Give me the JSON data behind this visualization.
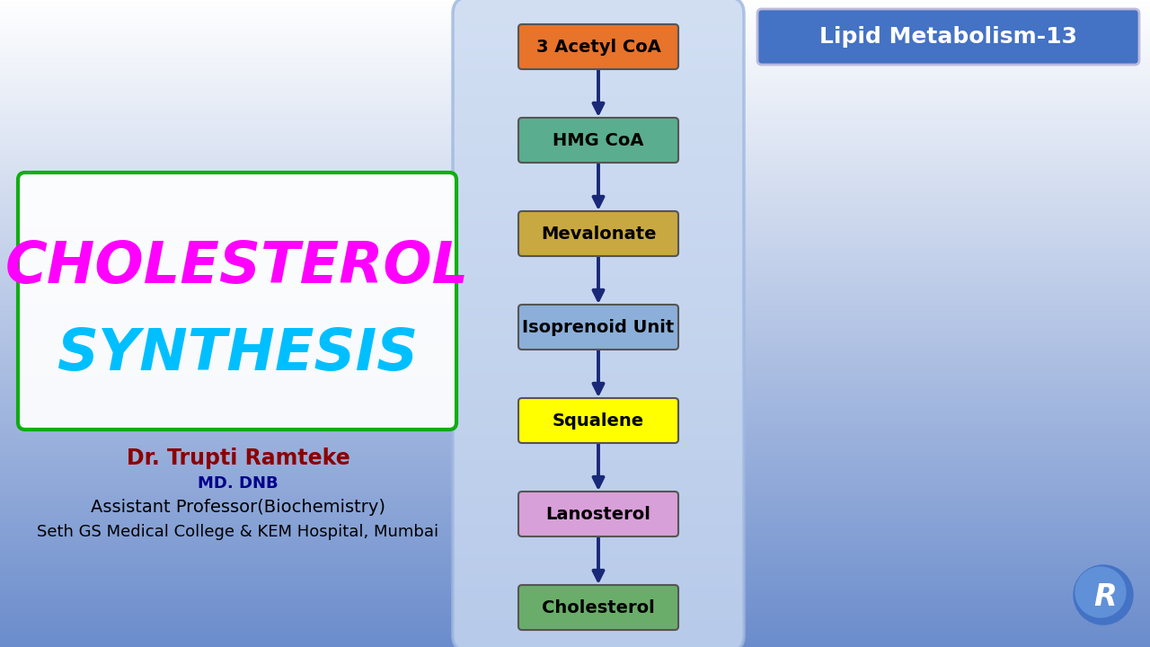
{
  "title_line1": "CHOLESTEROL",
  "title_line2": "SYNTHESIS",
  "lipid_label": "Lipid Metabolism-13",
  "steps": [
    {
      "label": "3 Acetyl CoA",
      "color": "#E8732A",
      "text_color": "#000000"
    },
    {
      "label": "HMG CoA",
      "color": "#5BAD8F",
      "text_color": "#000000"
    },
    {
      "label": "Mevalonate",
      "color": "#C8A840",
      "text_color": "#000000"
    },
    {
      "label": "Isoprenoid Unit",
      "color": "#8BAFD8",
      "text_color": "#000000"
    },
    {
      "label": "Squalene",
      "color": "#FFFF00",
      "text_color": "#000000"
    },
    {
      "label": "Lanosterol",
      "color": "#D8A0D8",
      "text_color": "#000000"
    },
    {
      "label": "Cholesterol",
      "color": "#6AAD6A",
      "text_color": "#000000"
    }
  ],
  "doctor_name": "Dr. Trupti Ramteke",
  "doctor_degree": "MD. DNB",
  "doctor_title": "Assistant Professor(Biochemistry)",
  "doctor_institution": "Seth GS Medical College & KEM Hospital, Mumbai",
  "panel_color": "#C8D8F0",
  "panel_border": "#A0B8E0",
  "arrow_color": "#1A2878",
  "lipid_box_color": "#4472C4",
  "lipid_text_color": "#FFFFFF",
  "title_color1": "#FF00FF",
  "title_color2": "#00BFFF",
  "title_border_color": "#00AA00",
  "doctor_name_color": "#8B0000",
  "doctor_degree_color": "#00008B",
  "doctor_info_color": "#000000"
}
